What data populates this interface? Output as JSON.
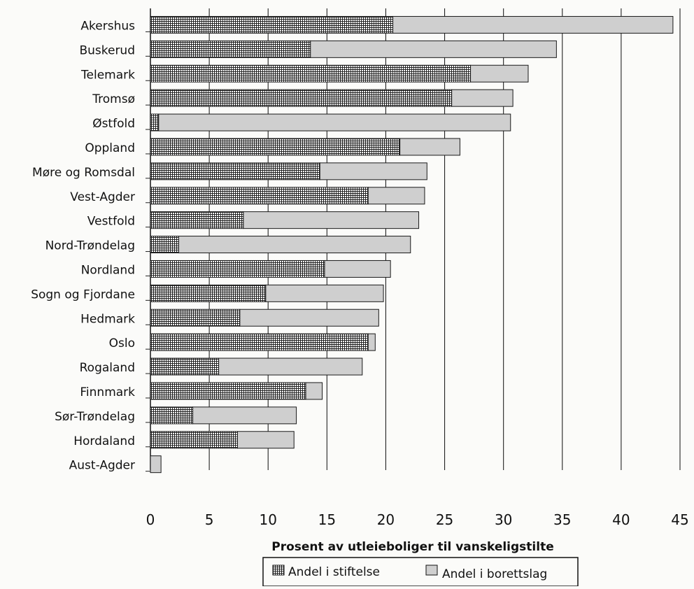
{
  "chart_data": {
    "type": "bar",
    "orientation": "horizontal",
    "stacked": true,
    "title": "",
    "xlabel": "Prosent av utleieboliger til vanskeligstilte",
    "ylabel": "",
    "xlim": [
      0,
      45
    ],
    "x_ticks": [
      "0",
      "5",
      "10",
      "15",
      "20",
      "25",
      "30",
      "35",
      "40",
      "45"
    ],
    "grid": "vertical",
    "legend_position": "bottom",
    "categories": [
      "Akershus",
      "Buskerud",
      "Telemark",
      "Tromsø",
      "Østfold",
      "Oppland",
      "Møre og Romsdal",
      "Vest-Agder",
      "Vestfold",
      "Nord-Trøndelag",
      "Nordland",
      "Sogn og Fjordane",
      "Hedmark",
      "Oslo",
      "Rogaland",
      "Finnmark",
      "Sør-Trøndelag",
      "Hordaland",
      "Aust-Agder"
    ],
    "series": [
      {
        "name": "Andel i stiftelse",
        "color": "#2a2a2a",
        "pattern": "grid",
        "values": [
          20.6,
          13.6,
          27.2,
          25.6,
          0.7,
          21.2,
          14.4,
          18.5,
          7.9,
          2.4,
          14.8,
          9.8,
          7.6,
          18.5,
          5.8,
          13.2,
          3.6,
          7.4,
          0.0
        ]
      },
      {
        "name": "Andel i borettslag",
        "color": "#cfcfcf",
        "pattern": "solid",
        "values": [
          23.8,
          20.9,
          4.9,
          5.2,
          29.9,
          5.1,
          9.1,
          4.8,
          14.9,
          19.7,
          5.6,
          10.0,
          11.8,
          0.6,
          12.2,
          1.4,
          8.8,
          4.8,
          0.9
        ]
      }
    ]
  }
}
